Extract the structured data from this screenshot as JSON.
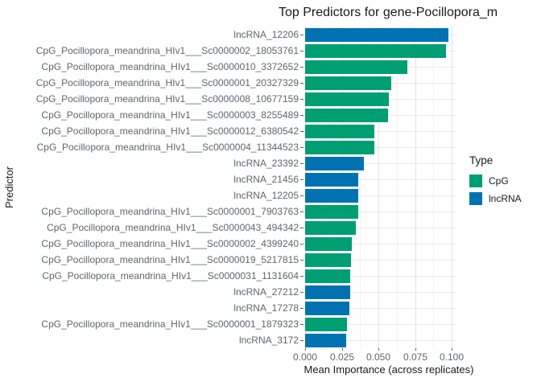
{
  "title": "Top Predictors for gene-Pocillopora_m",
  "axes": {
    "x_label": "Mean Importance (across replicates)",
    "y_label": "Predictor",
    "x_ticks": [
      "0.000",
      "0.025",
      "0.050",
      "0.075",
      "0.100"
    ],
    "x_tick_values": [
      0,
      0.025,
      0.05,
      0.075,
      0.1
    ]
  },
  "legend": {
    "title": "Type",
    "entries": [
      {
        "label": "CpG",
        "color": "#009E73"
      },
      {
        "label": "lncRNA",
        "color": "#0072B2"
      }
    ]
  },
  "colors": {
    "cpg": "#009E73",
    "lncrna": "#0072B2",
    "grid_major": "#e3e3e3",
    "grid_minor": "#f2f2f2",
    "axis_text": "#5b6770",
    "text": "#1a1a1a",
    "background": "#ffffff"
  },
  "chart_data": {
    "type": "bar",
    "orientation": "horizontal",
    "title": "Top Predictors for gene-Pocillopora_m",
    "xlabel": "Mean Importance (across replicates)",
    "ylabel": "Predictor",
    "xlim": [
      0,
      0.1033
    ],
    "grid": true,
    "legend_position": "right",
    "legend_title": "Type",
    "categories": [
      "lncRNA_12206",
      "CpG_Pocillopora_meandrina_HIv1___Sc0000002_18053761",
      "CpG_Pocillopora_meandrina_HIv1___Sc0000010_3372652",
      "CpG_Pocillopora_meandrina_HIv1___Sc0000001_20327329",
      "CpG_Pocillopora_meandrina_HIv1___Sc0000008_10677159",
      "CpG_Pocillopora_meandrina_HIv1___Sc0000003_8255489",
      "CpG_Pocillopora_meandrina_HIv1___Sc0000012_6380542",
      "CpG_Pocillopora_meandrina_HIv1___Sc0000004_11344523",
      "lncRNA_23392",
      "lncRNA_21456",
      "lncRNA_12205",
      "CpG_Pocillopora_meandrina_HIv1___Sc0000001_7903763",
      "CpG_Pocillopora_meandrina_HIv1___Sc0000043_494342",
      "CpG_Pocillopora_meandrina_HIv1___Sc0000002_4399240",
      "CpG_Pocillopora_meandrina_HIv1___Sc0000019_5217815",
      "CpG_Pocillopora_meandrina_HIv1___Sc0000031_1131604",
      "lncRNA_27212",
      "lncRNA_17278",
      "CpG_Pocillopora_meandrina_HIv1___Sc0000001_1879323",
      "lncRNA_3172"
    ],
    "values": [
      0.098,
      0.096,
      0.07,
      0.059,
      0.057,
      0.0565,
      0.0475,
      0.047,
      0.04,
      0.0362,
      0.0361,
      0.036,
      0.0346,
      0.0321,
      0.0314,
      0.0308,
      0.0306,
      0.0303,
      0.0285,
      0.028
    ],
    "types": [
      "lncRNA",
      "CpG",
      "CpG",
      "CpG",
      "CpG",
      "CpG",
      "CpG",
      "CpG",
      "lncRNA",
      "lncRNA",
      "lncRNA",
      "CpG",
      "CpG",
      "CpG",
      "CpG",
      "CpG",
      "lncRNA",
      "lncRNA",
      "CpG",
      "lncRNA"
    ]
  }
}
